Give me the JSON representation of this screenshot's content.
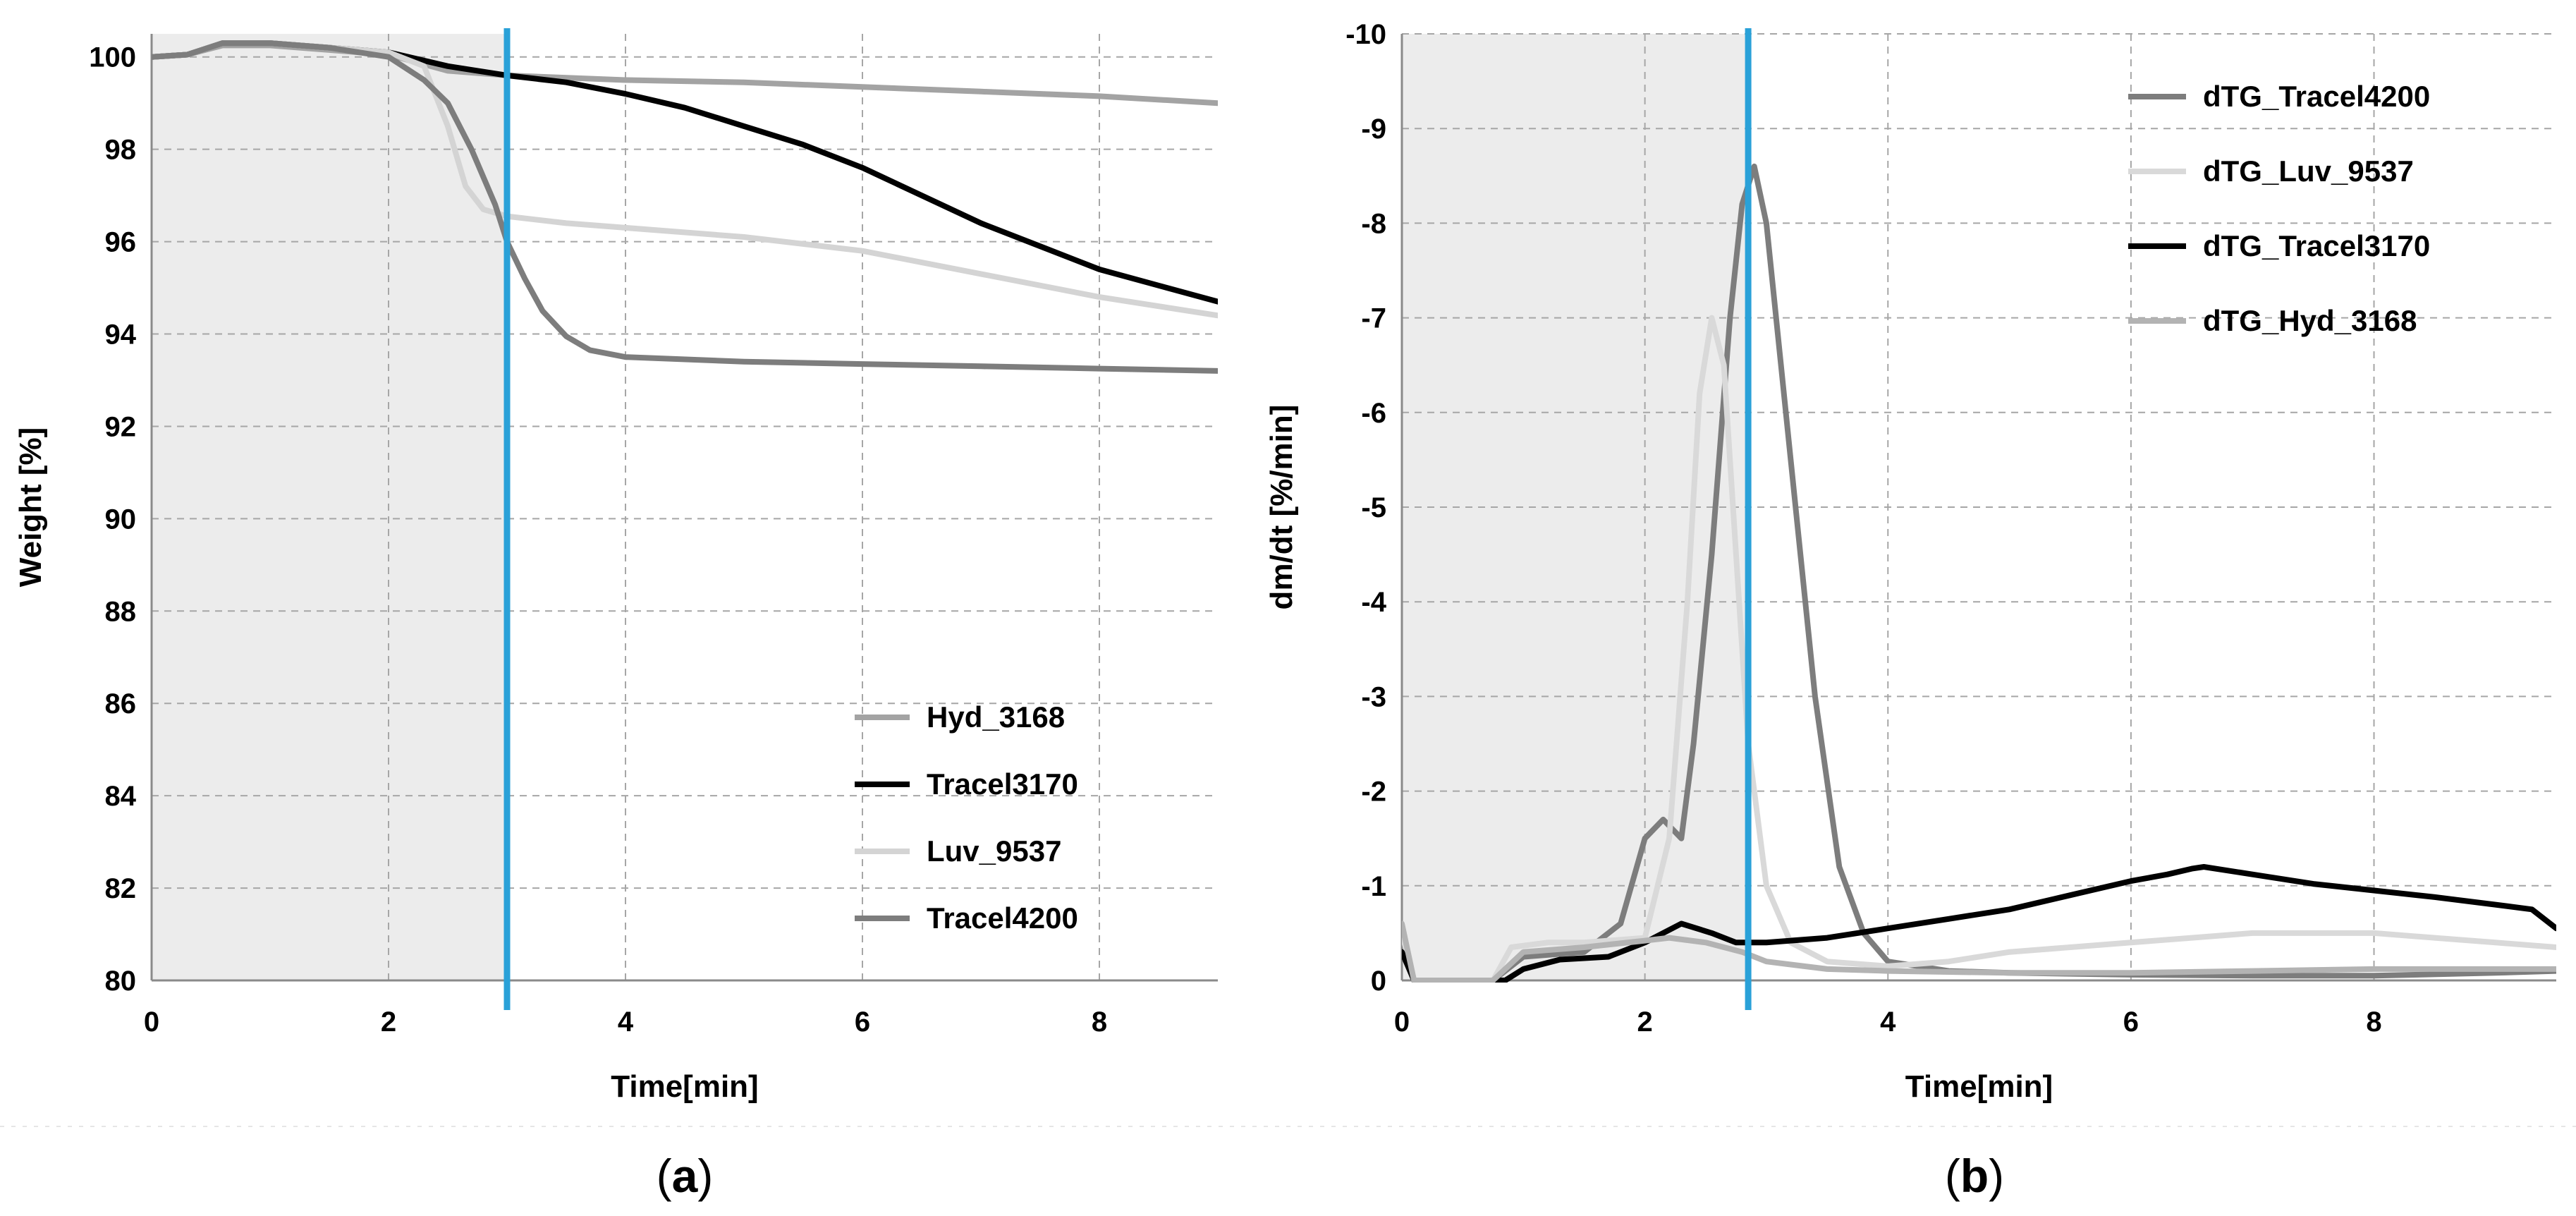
{
  "chart_data": [
    {
      "panel": "a",
      "type": "line",
      "caption_open": "(",
      "caption_letter": "a",
      "caption_close": ")",
      "xlabel": "Time[min]",
      "ylabel": "Weight [%]",
      "xlim": [
        0,
        9
      ],
      "ylim": [
        80,
        100.5
      ],
      "xticks": [
        0,
        2,
        4,
        6,
        8
      ],
      "yticks": [
        80,
        82,
        84,
        86,
        88,
        90,
        92,
        94,
        96,
        98,
        100
      ],
      "grid": true,
      "shaded_x_range": [
        0,
        3
      ],
      "shade_color": "#ececec",
      "marker_line": {
        "x": 3,
        "color": "#2aa1d8"
      },
      "legend_position": "bottom-right",
      "series": [
        {
          "name": "Hyd_3168",
          "color": "#a3a3a3",
          "x": [
            0,
            0.3,
            0.6,
            1,
            1.5,
            2,
            2.5,
            3,
            4,
            5,
            6,
            7,
            8,
            9
          ],
          "values": [
            100,
            100.05,
            100.25,
            100.25,
            100.15,
            100.05,
            99.7,
            99.6,
            99.5,
            99.45,
            99.35,
            99.25,
            99.15,
            99.0
          ]
        },
        {
          "name": "Tracel3170",
          "color": "#000000",
          "x": [
            0,
            0.3,
            0.6,
            1,
            1.5,
            2,
            2.5,
            3,
            3.5,
            4,
            4.5,
            5,
            5.5,
            6,
            6.5,
            7,
            7.5,
            8,
            8.5,
            9
          ],
          "values": [
            100,
            100.05,
            100.3,
            100.3,
            100.2,
            100.1,
            99.8,
            99.6,
            99.45,
            99.2,
            98.9,
            98.5,
            98.1,
            97.6,
            97.0,
            96.4,
            95.9,
            95.4,
            95.05,
            94.7
          ]
        },
        {
          "name": "Luv_9537",
          "color": "#d4d4d4",
          "x": [
            0,
            0.3,
            0.6,
            1,
            1.5,
            2,
            2.3,
            2.5,
            2.65,
            2.8,
            3,
            3.5,
            4,
            5,
            6,
            7,
            8,
            9
          ],
          "values": [
            100,
            100.05,
            100.3,
            100.3,
            100.2,
            100.1,
            99.8,
            98.5,
            97.2,
            96.7,
            96.55,
            96.4,
            96.3,
            96.1,
            95.8,
            95.3,
            94.8,
            94.4
          ]
        },
        {
          "name": "Tracel4200",
          "color": "#7d7d7d",
          "x": [
            0,
            0.3,
            0.6,
            1,
            1.5,
            2,
            2.3,
            2.5,
            2.7,
            2.9,
            3.0,
            3.15,
            3.3,
            3.5,
            3.7,
            4,
            5,
            6,
            7,
            8,
            9
          ],
          "values": [
            100,
            100.05,
            100.3,
            100.3,
            100.2,
            100.0,
            99.5,
            99.0,
            98.0,
            96.8,
            96.0,
            95.2,
            94.5,
            93.95,
            93.65,
            93.5,
            93.4,
            93.35,
            93.3,
            93.25,
            93.2
          ]
        }
      ]
    },
    {
      "panel": "b",
      "type": "line",
      "caption_open": "(",
      "caption_letter": "b",
      "caption_close": ")",
      "xlabel": "Time[min]",
      "ylabel": "dm/dt [%/min]",
      "xlim": [
        0,
        9.5
      ],
      "ylim": [
        0,
        -10
      ],
      "y_axis_inverted": true,
      "xticks": [
        0,
        2,
        4,
        6,
        8
      ],
      "yticks": [
        0,
        -1,
        -2,
        -3,
        -4,
        -5,
        -6,
        -7,
        -8,
        -9,
        -10
      ],
      "grid": true,
      "shaded_x_range": [
        0,
        2.85
      ],
      "shade_color": "#ececec",
      "marker_line": {
        "x": 2.85,
        "color": "#2aa1d8"
      },
      "legend_position": "top-right",
      "series": [
        {
          "name": "dTG_Tracel4200",
          "color": "#7d7d7d",
          "x": [
            0,
            0.1,
            0.75,
            1,
            1.5,
            1.8,
            2.0,
            2.15,
            2.3,
            2.4,
            2.55,
            2.7,
            2.8,
            2.9,
            3.0,
            3.2,
            3.4,
            3.6,
            3.8,
            4.0,
            4.5,
            5,
            6,
            7,
            8,
            9,
            9.5
          ],
          "values": [
            -0.4,
            0,
            0,
            -0.25,
            -0.3,
            -0.6,
            -1.5,
            -1.7,
            -1.5,
            -2.5,
            -4.5,
            -7.0,
            -8.2,
            -8.6,
            -8.0,
            -5.5,
            -3.0,
            -1.2,
            -0.5,
            -0.2,
            -0.1,
            -0.08,
            -0.06,
            -0.05,
            -0.05,
            -0.08,
            -0.1
          ]
        },
        {
          "name": "dTG_Luv_9537",
          "color": "#d9d9d9",
          "x": [
            0,
            0.1,
            0.75,
            0.9,
            1.2,
            1.5,
            2.0,
            2.2,
            2.35,
            2.45,
            2.55,
            2.65,
            2.75,
            2.85,
            3.0,
            3.2,
            3.5,
            4,
            4.5,
            5,
            5.5,
            6,
            6.5,
            7,
            7.5,
            8,
            8.5,
            9,
            9.5
          ],
          "values": [
            -0.5,
            0,
            0,
            -0.35,
            -0.4,
            -0.4,
            -0.45,
            -1.5,
            -4.0,
            -6.2,
            -7.0,
            -6.5,
            -4.5,
            -2.5,
            -1.0,
            -0.4,
            -0.2,
            -0.15,
            -0.2,
            -0.3,
            -0.35,
            -0.4,
            -0.45,
            -0.5,
            -0.5,
            -0.5,
            -0.45,
            -0.4,
            -0.35
          ]
        },
        {
          "name": "dTG_Tracel3170",
          "color": "#000000",
          "x": [
            0,
            0.1,
            0.85,
            1.0,
            1.3,
            1.7,
            2.0,
            2.3,
            2.55,
            2.75,
            3.0,
            3.5,
            4.0,
            4.5,
            5.0,
            5.5,
            6.0,
            6.3,
            6.5,
            6.6,
            7.0,
            7.5,
            8.0,
            8.5,
            9.0,
            9.3,
            9.5
          ],
          "values": [
            -0.3,
            0,
            0,
            -0.12,
            -0.22,
            -0.25,
            -0.4,
            -0.6,
            -0.5,
            -0.4,
            -0.4,
            -0.45,
            -0.55,
            -0.65,
            -0.75,
            -0.9,
            -1.05,
            -1.12,
            -1.18,
            -1.2,
            -1.12,
            -1.02,
            -0.95,
            -0.88,
            -0.8,
            -0.75,
            -0.55
          ]
        },
        {
          "name": "dTG_Hyd_3168",
          "color": "#b3b3b3",
          "x": [
            0,
            0.1,
            0.75,
            1.0,
            1.5,
            2.0,
            2.2,
            2.5,
            2.8,
            3.0,
            3.5,
            4.0,
            5.0,
            6.0,
            7.0,
            8.0,
            9.0,
            9.5
          ],
          "values": [
            -0.6,
            0,
            0,
            -0.3,
            -0.35,
            -0.42,
            -0.45,
            -0.4,
            -0.3,
            -0.2,
            -0.12,
            -0.1,
            -0.08,
            -0.08,
            -0.1,
            -0.12,
            -0.12,
            -0.12
          ]
        }
      ]
    }
  ]
}
